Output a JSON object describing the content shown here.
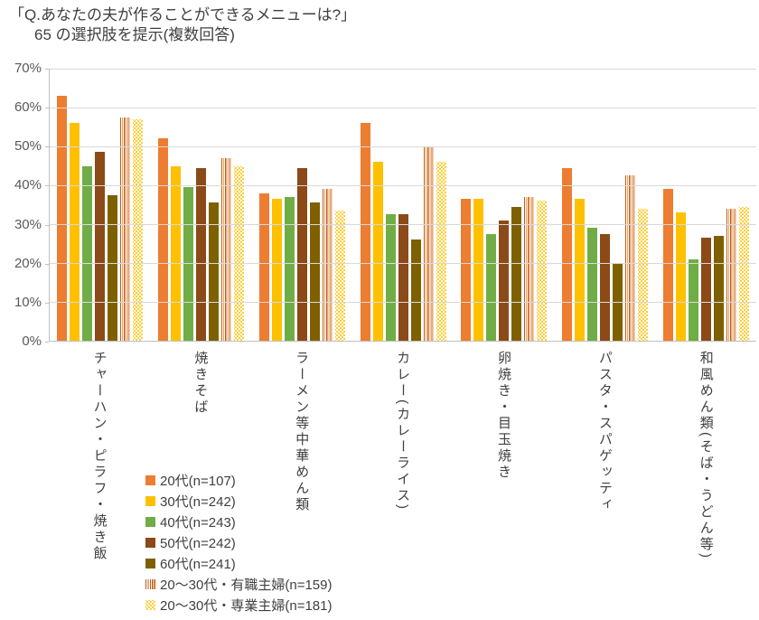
{
  "title": {
    "line1": "「Q.あなたの夫が作ることができるメニューは?」",
    "line2": "65 の選択肢を提示(複数回答)"
  },
  "palette": {
    "gridline": "#d9d9d9",
    "axis_line": "#bfbfbf",
    "tick_text": "#595959",
    "label_text": "#3f3f3f"
  },
  "chart_data": {
    "type": "bar",
    "title": "「Q.あなたの夫が作ることができるメニューは?」65 の選択肢を提示(複数回答)",
    "categories": [
      "チャーハン・ピラフ・焼き飯",
      "焼きそば",
      "ラーメン等中華めん類",
      "カレー(カレーライス)",
      "卵焼き・目玉焼き",
      "パスタ・スパゲッティ",
      "和風めん類(そば・うどん等)"
    ],
    "series": [
      {
        "name": "20代(n=107)",
        "color": "#ED7D31",
        "fill": "solid",
        "values": [
          63,
          52,
          38,
          56,
          36.5,
          44.5,
          39
        ]
      },
      {
        "name": "30代(n=242)",
        "color": "#FFC000",
        "fill": "solid",
        "values": [
          56,
          45,
          36.5,
          46,
          36.5,
          36.5,
          33
        ]
      },
      {
        "name": "40代(n=243)",
        "color": "#70AD47",
        "fill": "solid",
        "values": [
          45,
          39.5,
          37,
          32.5,
          27.5,
          29,
          21
        ]
      },
      {
        "name": "50代(n=242)",
        "color": "#8B4A17",
        "fill": "solid",
        "values": [
          48.5,
          44.5,
          44.5,
          32.5,
          31,
          27.5,
          26.5
        ]
      },
      {
        "name": "60代(n=241)",
        "color": "#7F6000",
        "fill": "solid",
        "values": [
          37.5,
          35.5,
          35.5,
          26,
          34.5,
          20,
          27
        ]
      },
      {
        "name": "20〜30代・有職主婦(n=159)",
        "color": "#C55A11",
        "fill": "striped",
        "values": [
          57.5,
          47,
          39,
          50,
          37,
          42.5,
          34
        ]
      },
      {
        "name": "20〜30代・専業主婦(n=181)",
        "color": "#FFC000",
        "fill": "dotted",
        "values": [
          57,
          45,
          33.5,
          46,
          36,
          34,
          34.5
        ]
      }
    ],
    "xlabel": "",
    "ylabel": "",
    "ylim": [
      0,
      70
    ],
    "ytick_step": 10,
    "yticks": [
      "0%",
      "10%",
      "20%",
      "30%",
      "40%",
      "50%",
      "60%",
      "70%"
    ],
    "grid": true,
    "legend_position": "bottom-left"
  }
}
